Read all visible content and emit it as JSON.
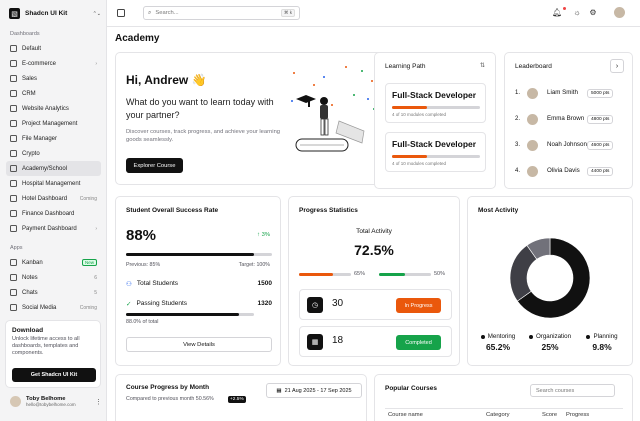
{
  "sidebar": {
    "brand": "Shadcn UI Kit",
    "section_dashboards": "Dashboards",
    "dashboards": [
      {
        "label": "Default",
        "right": ""
      },
      {
        "label": "E-commerce",
        "right": "›"
      },
      {
        "label": "Sales",
        "right": ""
      },
      {
        "label": "CRM",
        "right": ""
      },
      {
        "label": "Website Analytics",
        "right": ""
      },
      {
        "label": "Project Management",
        "right": ""
      },
      {
        "label": "File Manager",
        "right": ""
      },
      {
        "label": "Crypto",
        "right": ""
      },
      {
        "label": "Academy/School",
        "right": "",
        "active": true
      },
      {
        "label": "Hospital Management",
        "right": ""
      },
      {
        "label": "Hotel Dashboard",
        "right": "Coming"
      },
      {
        "label": "Finance Dashboard",
        "right": ""
      },
      {
        "label": "Payment Dashboard",
        "right": "›"
      }
    ],
    "section_apps": "Apps",
    "apps": [
      {
        "label": "Kanban",
        "right": "New"
      },
      {
        "label": "Notes",
        "right": "6"
      },
      {
        "label": "Chats",
        "right": "5"
      },
      {
        "label": "Social Media",
        "right": "Coming"
      }
    ],
    "promo": {
      "title": "Download",
      "desc": "Unlock lifetime access to all dashboards, templates and components.",
      "button": "Get Shadcn UI Kit"
    },
    "user": {
      "name": "Toby Belhome",
      "email": "hello@tobybelhome.com"
    }
  },
  "topbar": {
    "search_placeholder": "Search...",
    "shortcut": "⌘ k"
  },
  "page_title": "Academy",
  "hero": {
    "greeting": "Hi, Andrew 👋",
    "question": "What do you want to learn today with your partner?",
    "desc": "Discover courses, track progress, and achieve your learning goods seamlessly.",
    "button": "Explorer Course"
  },
  "learning_path": {
    "title": "Learning Path",
    "items": [
      {
        "name": "Full-Stack Developer",
        "sub": "4 of 10 modules completed",
        "progress": 0.4
      },
      {
        "name": "Full-Stack Developer",
        "sub": "4 of 10 modules completed",
        "progress": 0.4
      }
    ]
  },
  "leaderboard": {
    "title": "Leaderboard",
    "rows": [
      {
        "rank": "1.",
        "name": "Liam Smith",
        "pts": "5000 pts"
      },
      {
        "rank": "2.",
        "name": "Emma Brown",
        "pts": "4800 pts"
      },
      {
        "rank": "3.",
        "name": "Noah Johnson",
        "pts": "4600 pts"
      },
      {
        "rank": "4.",
        "name": "Olivia Davis",
        "pts": "4400 pts"
      }
    ]
  },
  "success": {
    "title": "Student Overall Success Rate",
    "value": "88%",
    "change": "↑ 3%",
    "previous": "Previous: 85%",
    "target": "Target: 100%",
    "progress": 0.88,
    "total_label": "Total Students",
    "total_value": "1500",
    "passing_label": "Passing Students",
    "passing_value": "1320",
    "passing_sub": "88.0% of total",
    "button": "View Details"
  },
  "progress_stats": {
    "title": "Progress Statistics",
    "activity_label": "Total Activity",
    "activity_value": "72.5%",
    "bars": [
      {
        "pct": "65%",
        "fill": 0.65,
        "color": "#ea580c"
      },
      {
        "pct": "50%",
        "fill": 0.5,
        "color": "#16a34a"
      }
    ],
    "items": [
      {
        "value": "30",
        "status": "In Progress",
        "color": "#ea580c"
      },
      {
        "value": "18",
        "status": "Completed",
        "color": "#16a34a"
      }
    ]
  },
  "most_activity": {
    "title": "Most Activity",
    "chart_data": {
      "type": "pie",
      "categories": [
        "Mentoring",
        "Organization",
        "Planning"
      ],
      "values": [
        65.2,
        25,
        9.8
      ],
      "colors": [
        "#111111",
        "#3f3f46",
        "#71717a"
      ]
    },
    "legend": [
      {
        "label": "Mentoring",
        "value": "65.2%"
      },
      {
        "label": "Organization",
        "value": "25%"
      },
      {
        "label": "Planning",
        "value": "9.8%"
      }
    ]
  },
  "course_progress": {
    "title": "Course Progress by Month",
    "sub": "Compared to previous month 50.56%",
    "badge": "+2.5%",
    "date_range": "21 Aug 2025 - 17 Sep 2025"
  },
  "popular_courses": {
    "title": "Popular Courses",
    "search_placeholder": "Search courses",
    "columns": [
      "Course name",
      "Category",
      "Score",
      "Progress"
    ]
  }
}
